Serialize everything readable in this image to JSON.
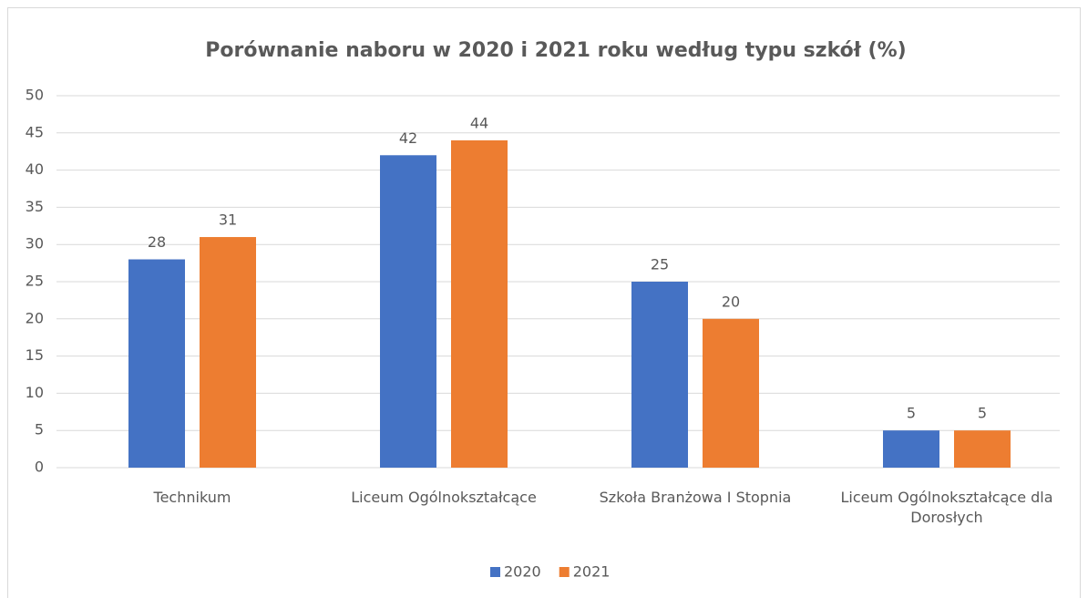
{
  "chart_data": {
    "type": "bar",
    "title": "Porównanie naboru  w 2020 i 2021 roku według typu szkół (%)",
    "categories": [
      "Technikum",
      "Liceum Ogólnokształcące",
      "Szkoła Branżowa I Stopnia",
      "Liceum Ogólnokształcące dla Dorosłych"
    ],
    "series": [
      {
        "name": "2020",
        "color": "#4472c4",
        "values": [
          28,
          42,
          25,
          5
        ]
      },
      {
        "name": "2021",
        "color": "#ed7d31",
        "values": [
          31,
          44,
          20,
          5
        ]
      }
    ],
    "ylim": [
      0,
      50
    ],
    "yticks": [
      0,
      5,
      10,
      15,
      20,
      25,
      30,
      35,
      40,
      45,
      50
    ],
    "grid": true,
    "legend": "bottom"
  }
}
